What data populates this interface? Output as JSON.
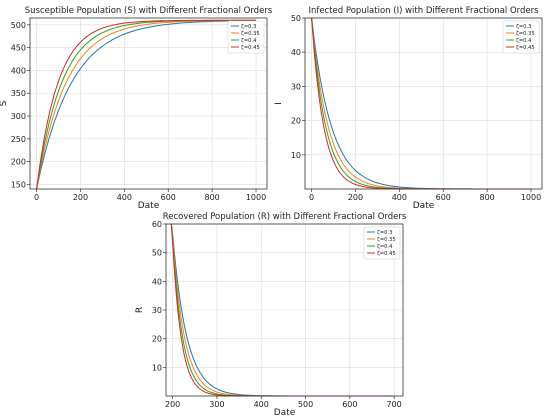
{
  "chart_data": [
    {
      "id": "susceptible",
      "type": "line",
      "title": "Susceptible Population (S) with Different Fractional Orders",
      "xlabel": "Date",
      "ylabel": "S",
      "xlim": [
        -30,
        1050
      ],
      "ylim": [
        140,
        515
      ],
      "xticks": [
        0,
        200,
        400,
        600,
        800,
        1000
      ],
      "yticks": [
        150,
        200,
        250,
        300,
        350,
        400,
        450,
        500
      ],
      "grid": true,
      "legend_position": "top-right",
      "model": {
        "kind": "rise",
        "start": 140,
        "end": 510,
        "x0": 0,
        "x1": 1000
      },
      "series": [
        {
          "name": "ζ=0.3",
          "color": "#1f77b4",
          "rate": 160
        },
        {
          "name": "ζ=0.35",
          "color": "#ff7f0e",
          "rate": 135
        },
        {
          "name": "ζ=0.4",
          "color": "#2ca02c",
          "rate": 115
        },
        {
          "name": "ζ=0.45",
          "color": "#d62728",
          "rate": 98
        }
      ]
    },
    {
      "id": "infected",
      "type": "line",
      "title": "Infected Population (I) with Different Fractional Orders",
      "xlabel": "Date",
      "ylabel": "I",
      "xlim": [
        -30,
        1050
      ],
      "ylim": [
        0,
        50
      ],
      "xticks": [
        0,
        200,
        400,
        600,
        800,
        1000
      ],
      "yticks": [
        10,
        20,
        30,
        40,
        50
      ],
      "grid": true,
      "legend_position": "top-right",
      "model": {
        "kind": "decay",
        "start": 50,
        "x0": 0,
        "x1": 1000
      },
      "series": [
        {
          "name": "ζ=0.3",
          "color": "#1f77b4",
          "rate": 90
        },
        {
          "name": "ζ=0.35",
          "color": "#ff7f0e",
          "rate": 75
        },
        {
          "name": "ζ=0.4",
          "color": "#2ca02c",
          "rate": 64
        },
        {
          "name": "ζ=0.45",
          "color": "#d62728",
          "rate": 55
        }
      ]
    },
    {
      "id": "recovered",
      "type": "line",
      "title": "Recovered Population (R) with Different Fractional Orders",
      "xlabel": "Date",
      "ylabel": "R",
      "xlim": [
        185,
        720
      ],
      "ylim": [
        0,
        60
      ],
      "xticks": [
        200,
        300,
        400,
        500,
        600,
        700
      ],
      "yticks": [
        10,
        20,
        30,
        40,
        50,
        60
      ],
      "grid": true,
      "legend_position": "top-right",
      "model": {
        "kind": "decay",
        "start": 62,
        "x0": 197,
        "x1": 700
      },
      "series": [
        {
          "name": "ζ=0.3",
          "color": "#1f77b4",
          "rate": 32
        },
        {
          "name": "ζ=0.35",
          "color": "#ff7f0e",
          "rate": 27
        },
        {
          "name": "ζ=0.4",
          "color": "#2ca02c",
          "rate": 23
        },
        {
          "name": "ζ=0.45",
          "color": "#d62728",
          "rate": 20
        }
      ]
    }
  ]
}
